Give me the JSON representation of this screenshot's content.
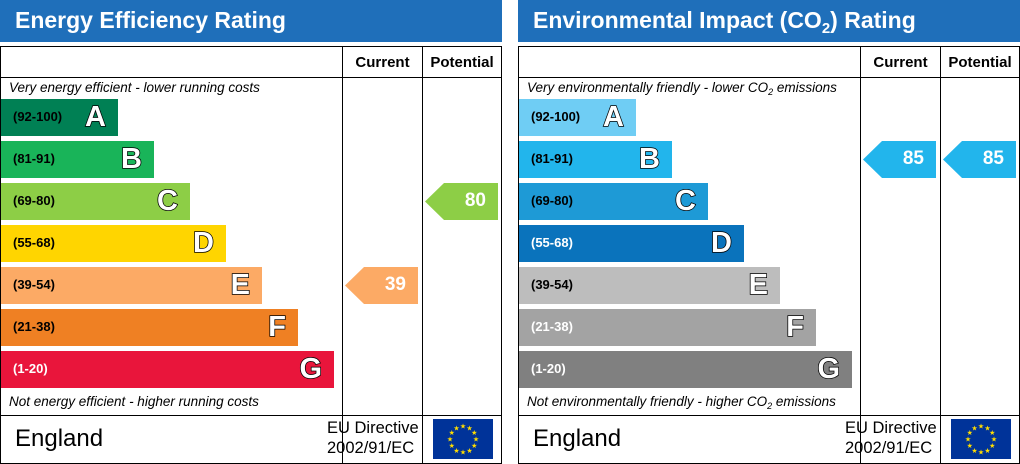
{
  "chart_data": [
    {
      "type": "bar",
      "title": "Energy Efficiency Rating",
      "columns": [
        "Current",
        "Potential"
      ],
      "top_note": "Very energy efficient - lower running costs",
      "bottom_note": "Not energy efficient - higher running costs",
      "bands": [
        {
          "range": "(92-100)",
          "letter": "A",
          "color": "#008054"
        },
        {
          "range": "(81-91)",
          "letter": "B",
          "color": "#19b459"
        },
        {
          "range": "(69-80)",
          "letter": "C",
          "color": "#8dce46"
        },
        {
          "range": "(55-68)",
          "letter": "D",
          "color": "#ffd500"
        },
        {
          "range": "(39-54)",
          "letter": "E",
          "color": "#fcaa65"
        },
        {
          "range": "(21-38)",
          "letter": "F",
          "color": "#ef8023"
        },
        {
          "range": "(1-20)",
          "letter": "G",
          "color": "#e9153b"
        }
      ],
      "current": {
        "value": 39,
        "band": "E",
        "color": "#fcaa65"
      },
      "potential": {
        "value": 80,
        "band": "C",
        "color": "#8dce46"
      },
      "country": "England",
      "directive": [
        "EU Directive",
        "2002/91/EC"
      ]
    },
    {
      "type": "bar",
      "title": "Environmental Impact (CO2) Rating",
      "title_parts": {
        "pre": "Environmental Impact (CO",
        "sub": "2",
        "post": ") Rating"
      },
      "columns": [
        "Current",
        "Potential"
      ],
      "top_note": "Very environmentally friendly - lower CO2 emissions",
      "top_note_parts": {
        "pre": "Very environmentally friendly - lower CO",
        "sub": "2",
        "post": " emissions"
      },
      "bottom_note": "Not environmentally friendly - higher CO2 emissions",
      "bottom_note_parts": {
        "pre": "Not environmentally friendly - higher CO",
        "sub": "2",
        "post": " emissions"
      },
      "bands": [
        {
          "range": "(92-100)",
          "letter": "A",
          "color": "#6fcdf4"
        },
        {
          "range": "(81-91)",
          "letter": "B",
          "color": "#22b5ec"
        },
        {
          "range": "(69-80)",
          "letter": "C",
          "color": "#1e9ad6"
        },
        {
          "range": "(55-68)",
          "letter": "D",
          "color": "#0a73bc"
        },
        {
          "range": "(39-54)",
          "letter": "E",
          "color": "#bdbdbd"
        },
        {
          "range": "(21-38)",
          "letter": "F",
          "color": "#a3a3a3"
        },
        {
          "range": "(1-20)",
          "letter": "G",
          "color": "#808080"
        }
      ],
      "current": {
        "value": 85,
        "band": "B",
        "color": "#22b5ec"
      },
      "potential": {
        "value": 85,
        "band": "B",
        "color": "#22b5ec"
      },
      "country": "England",
      "directive": [
        "EU Directive",
        "2002/91/EC"
      ]
    }
  ],
  "colors": {
    "header": "#1f6fba",
    "flag": "#003399",
    "stars": "#ffdd00"
  }
}
